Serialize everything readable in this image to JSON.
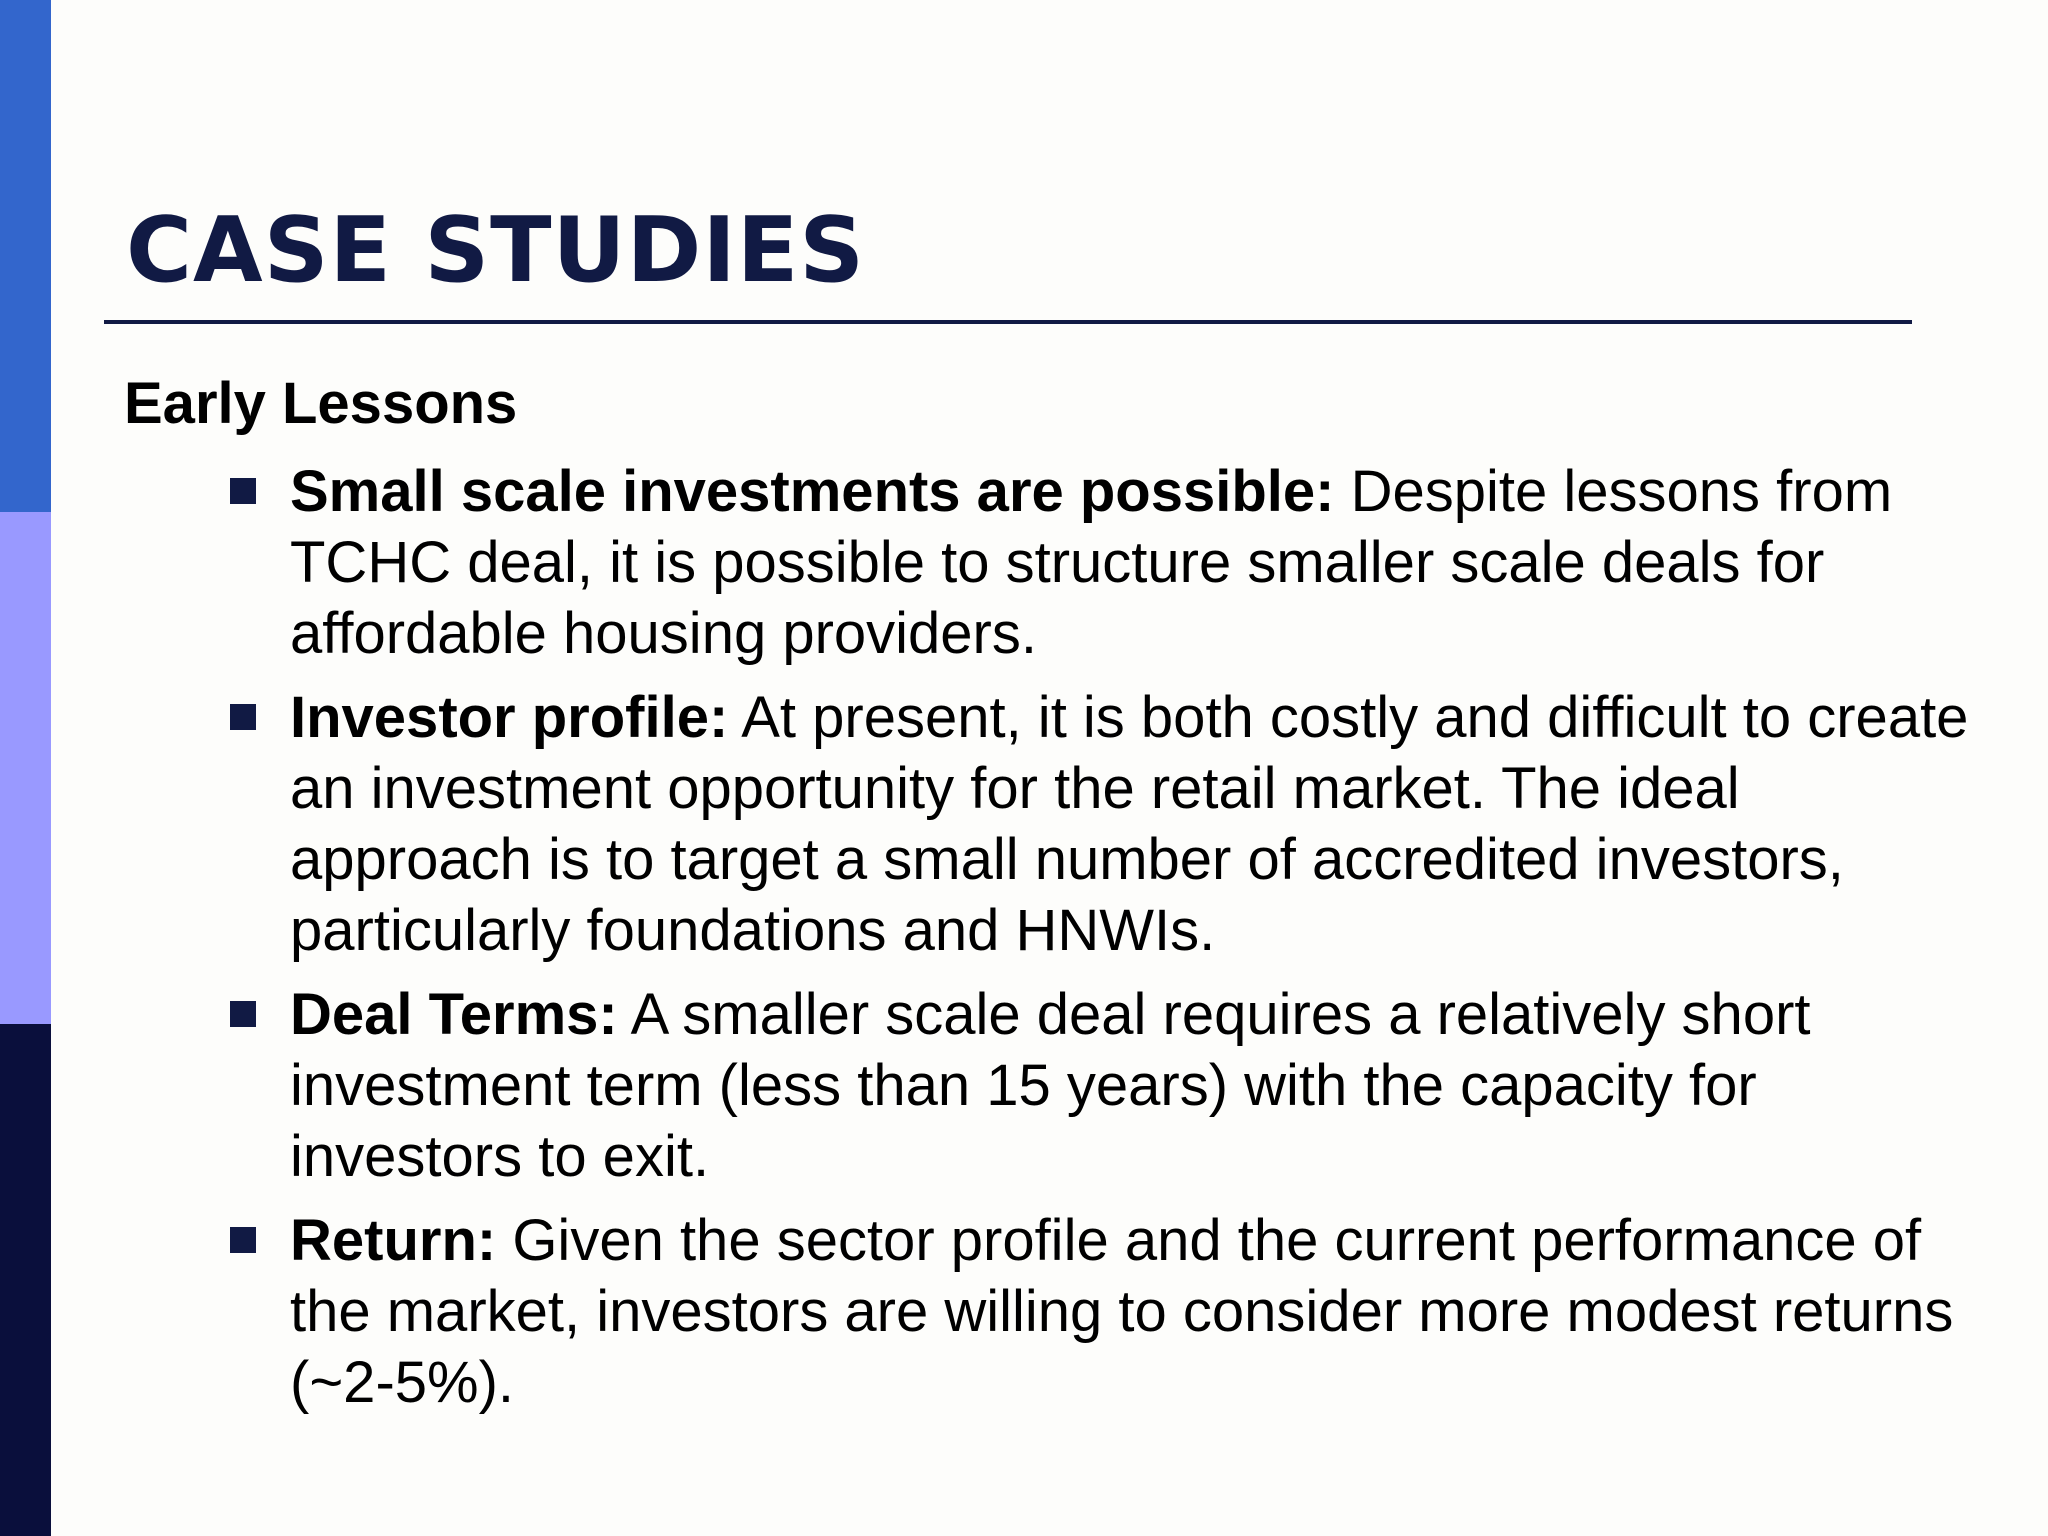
{
  "slide": {
    "title": "CASE STUDIES",
    "subtitle": "Early Lessons",
    "accent_colors": {
      "bar_top": "#3366cc",
      "bar_middle": "#9999ff",
      "bar_bottom": "#0a0f3c",
      "title": "#111a44"
    },
    "bullets": [
      {
        "term": "Small scale investments are possible:",
        "text": " Despite lessons from TCHC deal, it is possible to structure smaller scale deals for affordable housing providers."
      },
      {
        "term": "Investor profile:",
        "text": " At present, it is both costly and difficult to create an investment opportunity for the retail market.  The ideal approach is to target a small number of accredited investors, particularly foundations and HNWIs."
      },
      {
        "term": "Deal Terms:",
        "text": " A smaller scale deal requires a relatively short investment term (less than 15 years) with the capacity for investors to exit."
      },
      {
        "term": "Return:",
        "text": " Given the sector profile and the current performance of the market, investors are willing to consider more modest returns (~2-5%)."
      }
    ]
  }
}
